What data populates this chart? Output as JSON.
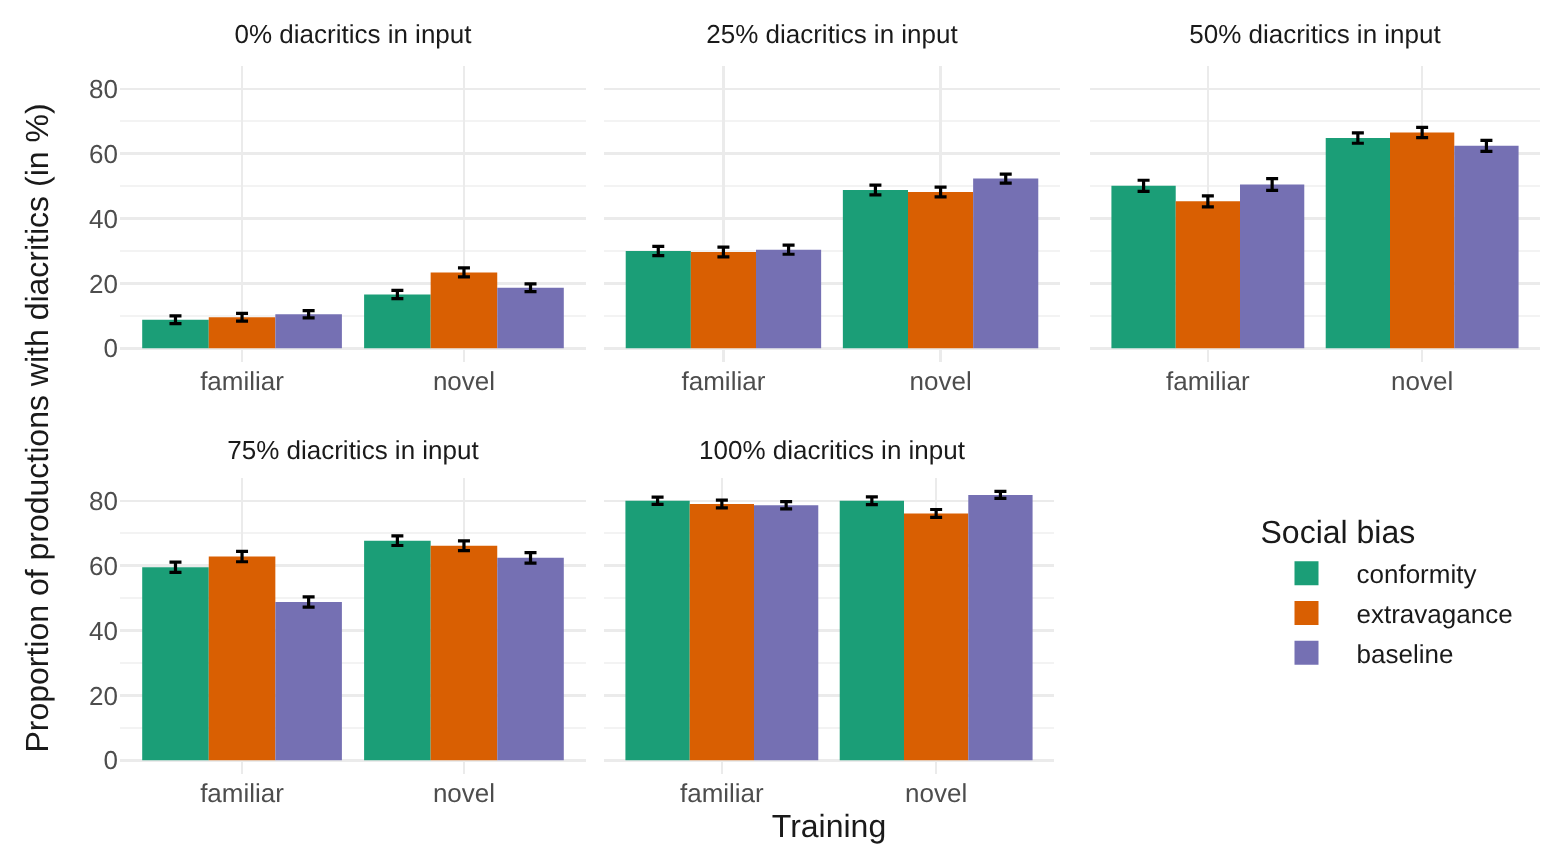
{
  "chart_data": [
    {
      "type": "bar",
      "title": "0% diacritics in input",
      "ylabel": "Proportion of productions with diacritics (in %)",
      "categories": [
        "familiar",
        "novel"
      ],
      "ylim": [
        -4.2,
        87
      ],
      "yticks": [
        0,
        20,
        40,
        60,
        80
      ],
      "grid": true,
      "series": [
        {
          "color": "#1b9e77",
          "values": [
            8.8,
            16.6
          ],
          "errors": [
            1.2,
            1.3
          ]
        },
        {
          "color": "#d95f02",
          "values": [
            9.6,
            23.4
          ],
          "errors": [
            1.2,
            1.4
          ]
        },
        {
          "color": "#7570b3",
          "values": [
            10.5,
            18.7
          ],
          "errors": [
            1.1,
            1.2
          ]
        }
      ]
    },
    {
      "type": "bar",
      "title": "25% diacritics in input",
      "categories": [
        "familiar",
        "novel"
      ],
      "ylim": [
        -4.2,
        87
      ],
      "yticks": [
        0,
        20,
        40,
        60,
        80
      ],
      "grid": true,
      "tick_labels": "x",
      "series": [
        {
          "color": "#1b9e77",
          "values": [
            30.0,
            48.8
          ],
          "errors": [
            1.4,
            1.5
          ]
        },
        {
          "color": "#d95f02",
          "values": [
            29.7,
            48.2
          ],
          "errors": [
            1.5,
            1.5
          ]
        },
        {
          "color": "#7570b3",
          "values": [
            30.4,
            52.3
          ],
          "errors": [
            1.4,
            1.4
          ]
        }
      ]
    },
    {
      "type": "bar",
      "title": "50% diacritics in input",
      "categories": [
        "familiar",
        "novel"
      ],
      "ylim": [
        -4.2,
        87
      ],
      "yticks": [
        0,
        20,
        40,
        60,
        80
      ],
      "grid": true,
      "tick_labels": "x",
      "series": [
        {
          "color": "#1b9e77",
          "values": [
            50.1,
            64.8
          ],
          "errors": [
            1.7,
            1.6
          ]
        },
        {
          "color": "#d95f02",
          "values": [
            45.3,
            66.5
          ],
          "errors": [
            1.7,
            1.6
          ]
        },
        {
          "color": "#7570b3",
          "values": [
            50.5,
            62.4
          ],
          "errors": [
            1.8,
            1.7
          ]
        }
      ]
    },
    {
      "type": "bar",
      "title": "75% diacritics in input",
      "categories": [
        "familiar",
        "novel"
      ],
      "ylim": [
        -4.2,
        87
      ],
      "yticks": [
        0,
        20,
        40,
        60,
        80
      ],
      "grid": true,
      "series": [
        {
          "color": "#1b9e77",
          "values": [
            59.5,
            67.7
          ],
          "errors": [
            1.6,
            1.5
          ]
        },
        {
          "color": "#d95f02",
          "values": [
            62.8,
            66.1
          ],
          "errors": [
            1.6,
            1.5
          ]
        },
        {
          "color": "#7570b3",
          "values": [
            48.8,
            62.4
          ],
          "errors": [
            1.6,
            1.6
          ]
        }
      ]
    },
    {
      "type": "bar",
      "title": "100% diacritics in input",
      "xlabel": "Training",
      "legend_title": "Social bias",
      "legend": "right",
      "categories": [
        "familiar",
        "novel"
      ],
      "ylim": [
        -4.2,
        87
      ],
      "yticks": [
        0,
        20,
        40,
        60,
        80
      ],
      "grid": true,
      "tick_labels": "x",
      "series": [
        {
          "name": "conformity",
          "color": "#1b9e77",
          "values": [
            80.0,
            80.0
          ],
          "errors": [
            1.1,
            1.2
          ]
        },
        {
          "name": "extravagance",
          "color": "#d95f02",
          "values": [
            79.0,
            76.1
          ],
          "errors": [
            1.2,
            1.2
          ]
        },
        {
          "name": "baseline",
          "color": "#7570b3",
          "values": [
            78.6,
            81.8
          ],
          "errors": [
            1.1,
            1.1
          ]
        }
      ]
    }
  ]
}
